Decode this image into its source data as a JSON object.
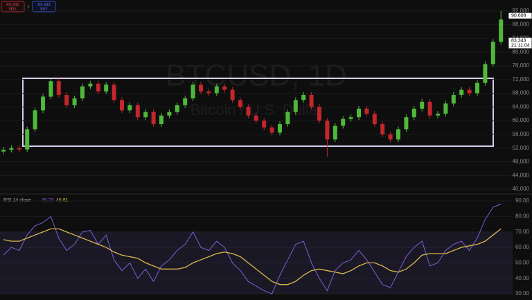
{
  "toolbar": {
    "sell_price": "83,342",
    "sell": "SELL",
    "separator": "0",
    "buy_price": "83,343",
    "buy": "BUY"
  },
  "chart_data": [
    {
      "type": "candlestick",
      "title": "BTCUSD, 1D",
      "subtitle": "Bitcoin / U.S. Dollar",
      "up_color": "#4fb83a",
      "down_color": "#c3262c",
      "open": [
        51000,
        51500,
        52000,
        51600,
        57500,
        63000,
        67000,
        71500,
        67500,
        64500,
        66500,
        70000,
        70800,
        68500,
        70500,
        66000,
        63000,
        64500,
        61000,
        62500,
        59000,
        61500,
        62500,
        64500,
        66500,
        70500,
        68500,
        68000,
        70000,
        69000,
        66000,
        64000,
        61500,
        60000,
        58000,
        56500,
        59000,
        62500,
        66000,
        67500,
        64000,
        60000,
        54500,
        58500,
        60500,
        61000,
        63500,
        62000,
        59000,
        56000,
        54500,
        57500,
        61000,
        63500,
        65500,
        61500,
        62000,
        65000,
        67500,
        69000,
        68000,
        71000,
        76500,
        83000
      ],
      "high": [
        52300,
        52800,
        52800,
        58300,
        63800,
        67800,
        72300,
        72300,
        68300,
        67300,
        70800,
        71600,
        71600,
        71300,
        71300,
        66800,
        65300,
        65300,
        63300,
        63300,
        62300,
        63300,
        65300,
        67300,
        71300,
        71300,
        69300,
        70800,
        70800,
        69800,
        66800,
        64800,
        62300,
        60800,
        58800,
        59800,
        63300,
        66800,
        68300,
        68300,
        64800,
        60800,
        59300,
        61300,
        61800,
        64300,
        64300,
        62800,
        59800,
        56800,
        58300,
        61800,
        64300,
        66300,
        66300,
        62800,
        65800,
        68300,
        69800,
        69800,
        71800,
        77300,
        83800,
        92000
      ],
      "low": [
        50200,
        50700,
        50800,
        50800,
        56700,
        62200,
        66200,
        66700,
        63700,
        63700,
        65700,
        69200,
        67700,
        67700,
        65200,
        62200,
        62200,
        60200,
        60200,
        58200,
        58200,
        60700,
        61700,
        63700,
        65700,
        67700,
        67200,
        67200,
        68200,
        65200,
        63200,
        60700,
        59200,
        57200,
        55700,
        55700,
        58200,
        61700,
        65200,
        63200,
        59200,
        49500,
        53700,
        57700,
        59700,
        60200,
        61200,
        58200,
        55200,
        53700,
        53700,
        56700,
        60200,
        62700,
        60700,
        60700,
        61200,
        64200,
        66700,
        67200,
        67200,
        70200,
        75700,
        82200
      ],
      "close": [
        51500,
        52000,
        51600,
        57500,
        63000,
        67000,
        71500,
        67500,
        64500,
        66500,
        70000,
        70800,
        68500,
        70500,
        66000,
        63000,
        64500,
        61000,
        62500,
        59000,
        61500,
        62500,
        64500,
        66500,
        70500,
        68500,
        68000,
        70000,
        69000,
        66000,
        64000,
        61500,
        60000,
        58000,
        56500,
        59000,
        62500,
        66000,
        67500,
        64000,
        60000,
        54500,
        58500,
        60500,
        61000,
        63500,
        62000,
        59000,
        56000,
        54500,
        57500,
        61000,
        63500,
        65500,
        61500,
        62000,
        65000,
        67500,
        69000,
        68000,
        71000,
        76500,
        83000,
        89500
      ],
      "ylim": [
        38600,
        95200
      ],
      "yticks": [
        {
          "value": 40000,
          "label": "40,000"
        },
        {
          "value": 44000,
          "label": "44,000"
        },
        {
          "value": 48000,
          "label": "48,000"
        },
        {
          "value": 52000,
          "label": "52,000"
        },
        {
          "value": 56000,
          "label": "56,000"
        },
        {
          "value": 60000,
          "label": "60,000"
        },
        {
          "value": 64000,
          "label": "64,000"
        },
        {
          "value": 68000,
          "label": "68,000"
        },
        {
          "value": 72000,
          "label": "72,000"
        },
        {
          "value": 76000,
          "label": "76,000"
        },
        {
          "value": 80000,
          "label": "80,000"
        },
        {
          "value": 84000,
          "label": "84,000"
        },
        {
          "value": 88000,
          "label": "88,000"
        },
        {
          "value": 92000,
          "label": "92,000"
        }
      ],
      "price_tags": [
        {
          "value": 90608,
          "label": "90,608"
        },
        {
          "value": 83343,
          "label": "83,343",
          "time": "21:11:04"
        }
      ],
      "grid": true
    },
    {
      "type": "line",
      "title": "RSI 14 close",
      "readout": [
        45.73,
        46.81
      ],
      "series": [
        {
          "color": "#7b5fd6",
          "values": [
            55,
            60,
            58,
            68,
            74,
            76,
            80,
            66,
            58,
            62,
            70,
            71,
            62,
            68,
            52,
            45,
            50,
            40,
            46,
            38,
            48,
            52,
            58,
            62,
            70,
            60,
            58,
            64,
            60,
            50,
            45,
            38,
            35,
            32,
            30,
            42,
            52,
            62,
            64,
            50,
            40,
            32,
            45,
            50,
            52,
            58,
            52,
            44,
            36,
            34,
            44,
            54,
            60,
            64,
            48,
            50,
            58,
            62,
            64,
            58,
            66,
            78,
            86,
            88
          ]
        },
        {
          "color": "#d7b94a",
          "values": [
            65,
            64,
            64,
            66,
            68,
            70,
            72,
            72,
            70,
            68,
            66,
            64,
            62,
            60,
            57,
            55,
            54,
            53,
            50,
            48,
            46,
            46,
            46,
            47,
            50,
            52,
            54,
            56,
            57,
            56,
            54,
            50,
            46,
            42,
            38,
            36,
            36,
            38,
            42,
            45,
            46,
            45,
            44,
            43,
            45,
            48,
            50,
            50,
            48,
            45,
            44,
            46,
            50,
            55,
            56,
            56,
            56,
            58,
            60,
            61,
            62,
            64,
            68,
            72
          ]
        }
      ],
      "band": [
        30,
        70
      ],
      "ylim": [
        26,
        94.5
      ],
      "yticks": [
        {
          "value": 30,
          "label": "30.00"
        },
        {
          "value": 40,
          "label": "40.00"
        },
        {
          "value": 50,
          "label": "50.00"
        },
        {
          "value": 60,
          "label": "60.00"
        },
        {
          "value": 70,
          "label": "70.00"
        },
        {
          "value": 80,
          "label": "80.00"
        },
        {
          "value": 90,
          "label": "90.00"
        }
      ],
      "grid": true
    }
  ]
}
